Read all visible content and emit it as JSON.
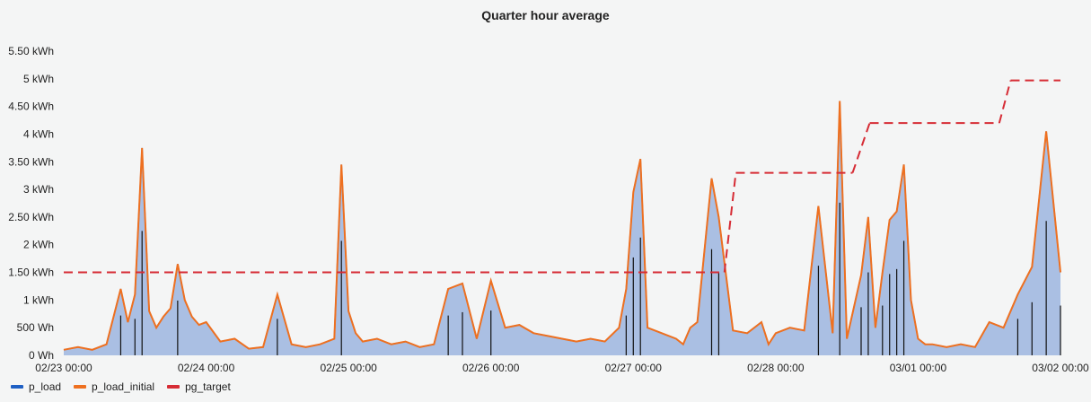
{
  "chart_data": {
    "type": "line",
    "title": "Quarter hour average",
    "y_ticks": [
      "0 Wh",
      "500 Wh",
      "1 kWh",
      "1.50 kWh",
      "2 kWh",
      "2.50 kWh",
      "3 kWh",
      "3.50 kWh",
      "4 kWh",
      "4.50 kWh",
      "5 kWh",
      "5.50 kWh"
    ],
    "y_unit": "kWh",
    "ylim": [
      0,
      5.5
    ],
    "x_ticks": [
      "02/23 00:00",
      "02/24 00:00",
      "02/25 00:00",
      "02/26 00:00",
      "02/27 00:00",
      "02/28 00:00",
      "03/01 00:00",
      "03/02 00:00"
    ],
    "x_unit": "days since 02/23 00:00",
    "xlim": [
      0,
      7
    ],
    "grid": false,
    "legend_position": "bottom-left",
    "series": [
      {
        "name": "p_load",
        "color": "#1f60c4",
        "style": "filled-area",
        "points": [
          [
            0.0,
            0.1
          ],
          [
            0.1,
            0.15
          ],
          [
            0.2,
            0.1
          ],
          [
            0.3,
            0.2
          ],
          [
            0.35,
            0.7
          ],
          [
            0.4,
            1.2
          ],
          [
            0.45,
            0.6
          ],
          [
            0.5,
            1.1
          ],
          [
            0.55,
            3.75
          ],
          [
            0.6,
            0.8
          ],
          [
            0.65,
            0.5
          ],
          [
            0.7,
            0.7
          ],
          [
            0.75,
            0.85
          ],
          [
            0.8,
            1.65
          ],
          [
            0.85,
            1.0
          ],
          [
            0.9,
            0.7
          ],
          [
            0.95,
            0.55
          ],
          [
            1.0,
            0.6
          ],
          [
            1.1,
            0.25
          ],
          [
            1.2,
            0.3
          ],
          [
            1.3,
            0.12
          ],
          [
            1.4,
            0.15
          ],
          [
            1.5,
            1.1
          ],
          [
            1.6,
            0.2
          ],
          [
            1.7,
            0.15
          ],
          [
            1.8,
            0.2
          ],
          [
            1.9,
            0.3
          ],
          [
            1.95,
            3.45
          ],
          [
            2.0,
            0.8
          ],
          [
            2.05,
            0.4
          ],
          [
            2.1,
            0.25
          ],
          [
            2.2,
            0.3
          ],
          [
            2.3,
            0.2
          ],
          [
            2.4,
            0.25
          ],
          [
            2.5,
            0.15
          ],
          [
            2.6,
            0.2
          ],
          [
            2.7,
            1.2
          ],
          [
            2.8,
            1.3
          ],
          [
            2.9,
            0.3
          ],
          [
            3.0,
            1.35
          ],
          [
            3.1,
            0.5
          ],
          [
            3.2,
            0.55
          ],
          [
            3.3,
            0.4
          ],
          [
            3.4,
            0.35
          ],
          [
            3.5,
            0.3
          ],
          [
            3.6,
            0.25
          ],
          [
            3.7,
            0.3
          ],
          [
            3.8,
            0.25
          ],
          [
            3.9,
            0.5
          ],
          [
            3.95,
            1.2
          ],
          [
            4.0,
            2.95
          ],
          [
            4.05,
            3.55
          ],
          [
            4.1,
            0.5
          ],
          [
            4.2,
            0.4
          ],
          [
            4.3,
            0.3
          ],
          [
            4.35,
            0.2
          ],
          [
            4.4,
            0.5
          ],
          [
            4.45,
            0.6
          ],
          [
            4.55,
            3.2
          ],
          [
            4.6,
            2.5
          ],
          [
            4.7,
            0.45
          ],
          [
            4.8,
            0.4
          ],
          [
            4.9,
            0.6
          ],
          [
            4.95,
            0.2
          ],
          [
            5.0,
            0.4
          ],
          [
            5.1,
            0.5
          ],
          [
            5.2,
            0.45
          ],
          [
            5.3,
            2.7
          ],
          [
            5.4,
            0.4
          ],
          [
            5.45,
            4.6
          ],
          [
            5.5,
            0.3
          ],
          [
            5.6,
            1.45
          ],
          [
            5.65,
            2.5
          ],
          [
            5.7,
            0.5
          ],
          [
            5.75,
            1.5
          ],
          [
            5.8,
            2.45
          ],
          [
            5.85,
            2.6
          ],
          [
            5.9,
            3.45
          ],
          [
            5.95,
            1.0
          ],
          [
            6.0,
            0.3
          ],
          [
            6.05,
            0.2
          ],
          [
            6.1,
            0.2
          ],
          [
            6.2,
            0.15
          ],
          [
            6.3,
            0.2
          ],
          [
            6.4,
            0.15
          ],
          [
            6.5,
            0.6
          ],
          [
            6.6,
            0.5
          ],
          [
            6.7,
            1.1
          ],
          [
            6.8,
            1.6
          ],
          [
            6.9,
            4.05
          ],
          [
            7.0,
            1.5
          ]
        ]
      },
      {
        "name": "p_load_initial",
        "color": "#ee7020",
        "style": "line"
      },
      {
        "name": "pg_target",
        "color": "#d62c35",
        "style": "dashed",
        "segments": [
          [
            0.0,
            1.5,
            4.64,
            1.5
          ],
          [
            4.72,
            3.3,
            5.54,
            3.3
          ],
          [
            5.66,
            4.2,
            6.57,
            4.2
          ],
          [
            6.65,
            4.97,
            7.0,
            4.97
          ]
        ]
      }
    ]
  }
}
